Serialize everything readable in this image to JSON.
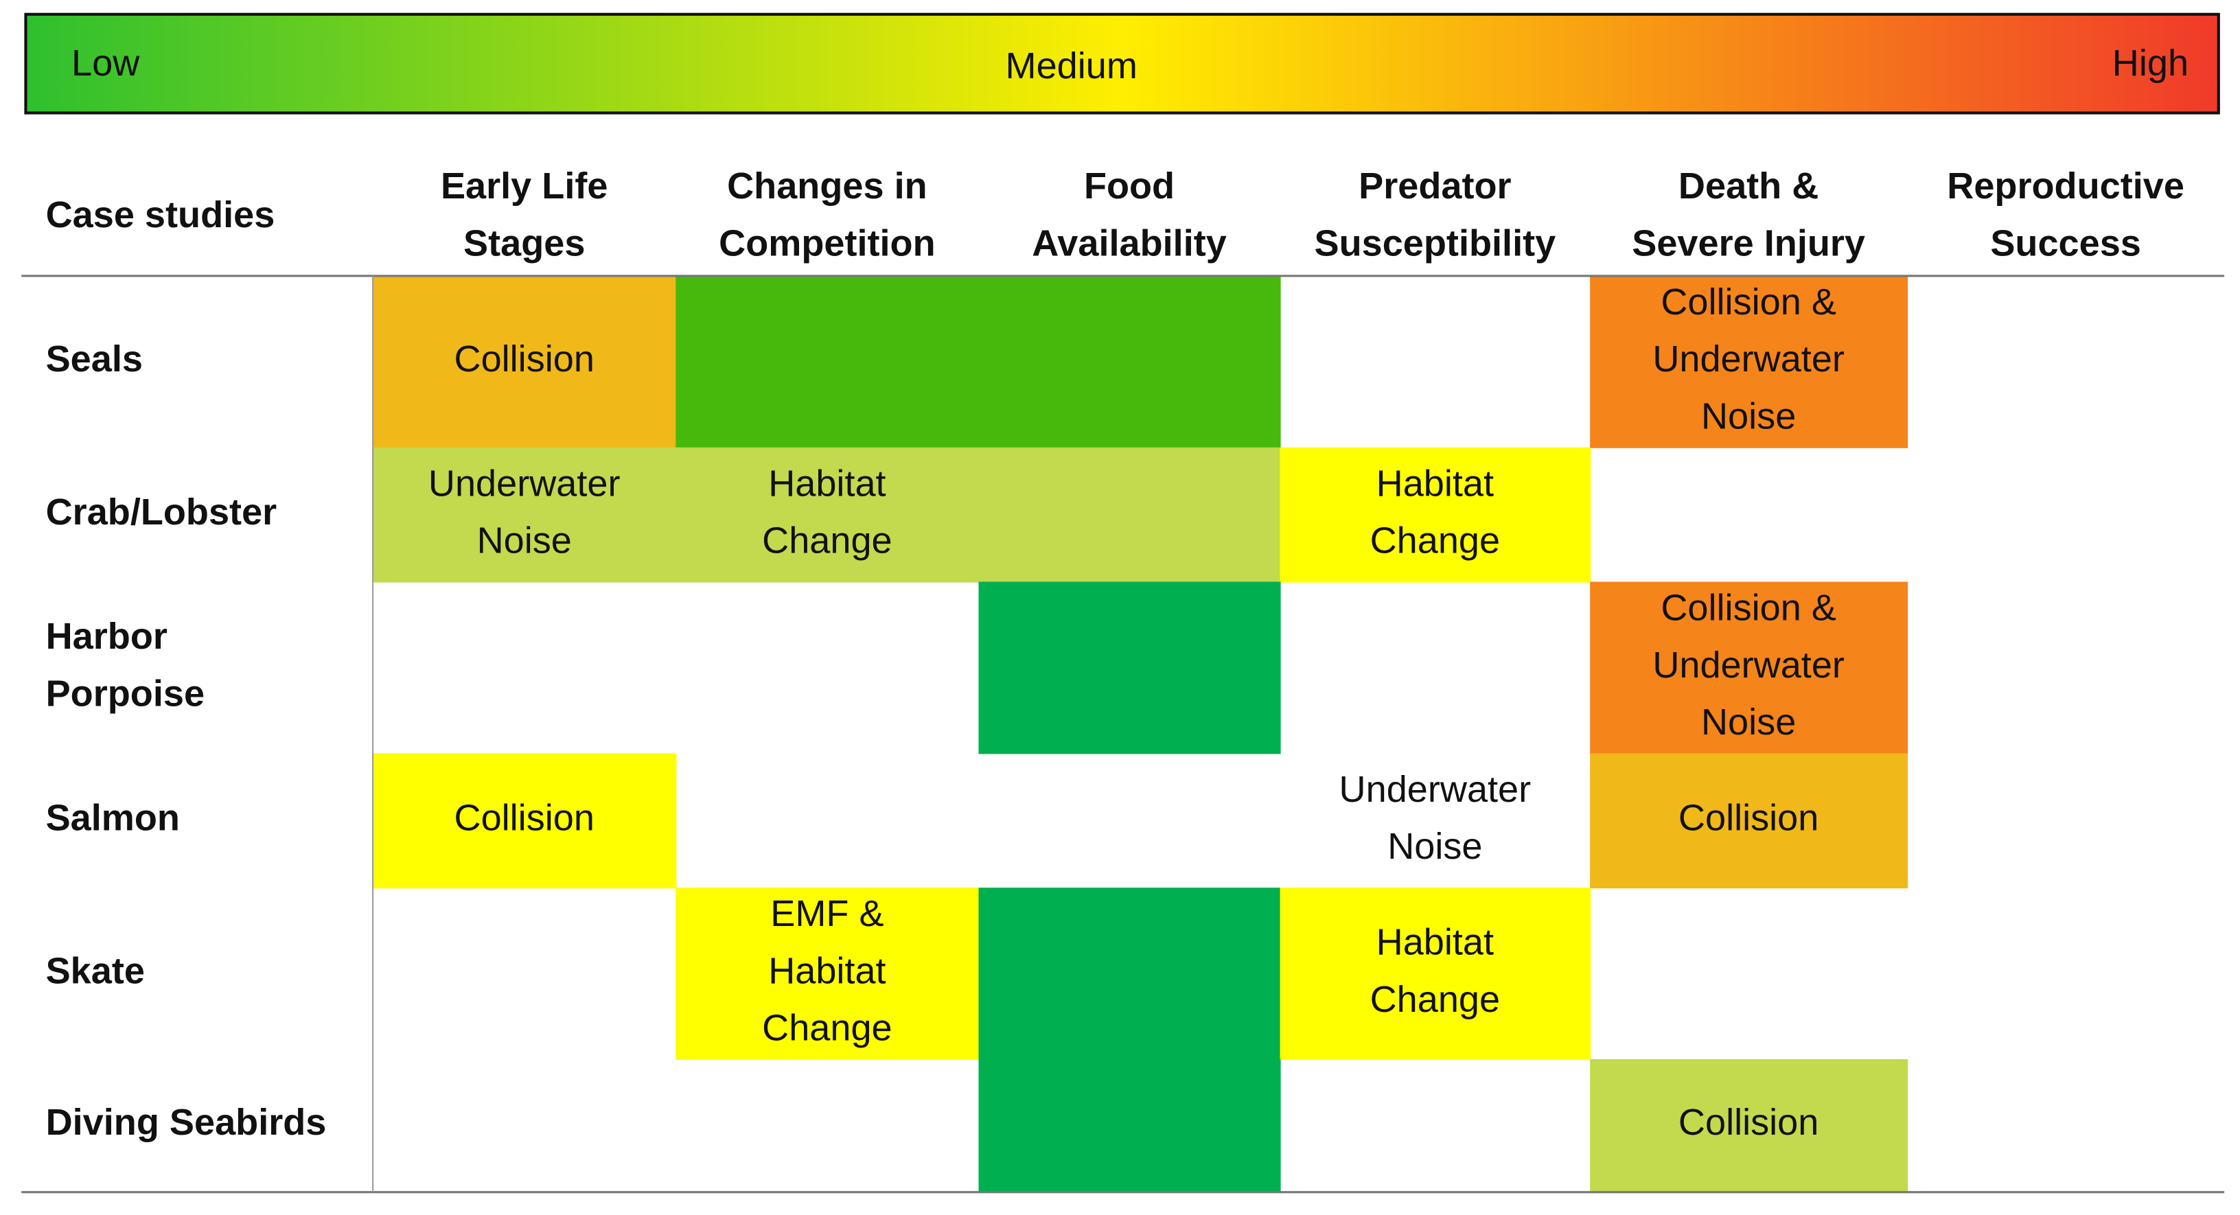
{
  "legend": {
    "low": "Low",
    "medium": "Medium",
    "high": "High",
    "colors": [
      "#2ec02e",
      "#ffee00",
      "#f03a2a"
    ]
  },
  "table": {
    "corner": "Case studies",
    "columns": [
      [
        "Early Life",
        "Stages"
      ],
      [
        "Changes in",
        "Competition"
      ],
      [
        "Food",
        "Availability"
      ],
      [
        "Predator",
        "Susceptibility"
      ],
      [
        "Death &",
        "Severe Injury"
      ],
      [
        "Reproductive",
        "Success"
      ]
    ],
    "rows": [
      {
        "label": [
          "Seals"
        ],
        "cells": [
          {
            "color": "#f0b819",
            "lines": [
              "Collision"
            ]
          },
          {
            "color": "#46b90c"
          },
          {
            "color": "#46b90c"
          },
          null,
          {
            "color": "#f5841a",
            "lines": [
              "Collision &",
              "Underwater",
              "Noise"
            ]
          },
          null
        ]
      },
      {
        "label": [
          "Crab/Lobster"
        ],
        "cells": [
          {
            "color": "#c3d94e",
            "lines": [
              "Underwater",
              "Noise"
            ]
          },
          {
            "color": "#c3d94e",
            "lines": [
              "Habitat",
              "Change"
            ]
          },
          {
            "color": "#c3d94e"
          },
          {
            "color": "#ffff00",
            "lines": [
              "Habitat",
              "Change"
            ]
          },
          null,
          null
        ]
      },
      {
        "label": [
          "Harbor",
          "Porpoise"
        ],
        "cells": [
          null,
          null,
          {
            "color": "#00b050"
          },
          null,
          {
            "color": "#f5841a",
            "lines": [
              "Collision &",
              "Underwater",
              "Noise"
            ]
          },
          null
        ]
      },
      {
        "label": [
          "Salmon"
        ],
        "cells": [
          {
            "color": "#ffff00",
            "lines": [
              "Collision"
            ]
          },
          null,
          null,
          {
            "lines": [
              "Underwater",
              "Noise"
            ]
          },
          {
            "color": "#f0b819",
            "lines": [
              "Collision"
            ]
          },
          null
        ]
      },
      {
        "label": [
          "Skate"
        ],
        "cells": [
          null,
          {
            "color": "#ffff00",
            "lines": [
              "EMF &",
              "Habitat",
              "Change"
            ]
          },
          {
            "color": "#00b050"
          },
          {
            "color": "#ffff00",
            "lines": [
              "Habitat",
              "Change"
            ]
          },
          null,
          null
        ]
      },
      {
        "label": [
          "Diving Seabirds"
        ],
        "cells": [
          null,
          null,
          {
            "color": "#00b050"
          },
          null,
          {
            "color": "#c3d94e",
            "lines": [
              "Collision"
            ]
          },
          null
        ]
      }
    ]
  }
}
